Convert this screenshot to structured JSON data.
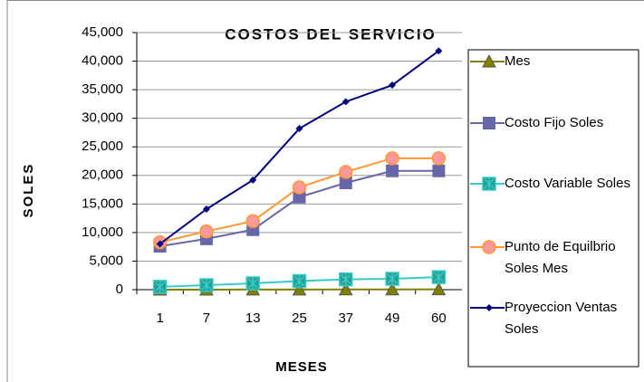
{
  "chart_data": {
    "type": "line",
    "title": "COSTOS DEL SERVICIO",
    "x_label": "MESES",
    "y_label": "SOLES",
    "categories": [
      "1",
      "7",
      "13",
      "25",
      "37",
      "49",
      "60"
    ],
    "series": [
      {
        "name": "Mes",
        "color": "#808000",
        "marker": "triangle",
        "values": [
          1,
          7,
          13,
          25,
          37,
          49,
          60
        ]
      },
      {
        "name": "Costo Fijo Soles",
        "color": "#6666a8",
        "marker": "square",
        "values": [
          7600,
          8900,
          10500,
          16200,
          18700,
          20800,
          20800
        ]
      },
      {
        "name": "Costo Variable Soles",
        "color": "#33cccc",
        "marker": "star",
        "values": [
          500,
          800,
          1100,
          1500,
          1800,
          1900,
          2200
        ]
      },
      {
        "name": "Punto de Equilbrio Soles Mes",
        "color": "#ff9933",
        "marker": "circle",
        "values": [
          8300,
          10200,
          12000,
          17900,
          20600,
          23000,
          23000
        ]
      },
      {
        "name": "Proyeccion Ventas Soles",
        "color": "#000080",
        "marker": "diamond",
        "values": [
          8000,
          14100,
          19200,
          28200,
          32900,
          35800,
          41800
        ]
      }
    ],
    "ylim": [
      0,
      45000
    ],
    "yticks": [
      0,
      {
        "value": 5000,
        "label": "5,000"
      },
      {
        "value": 10000,
        "label": "10,000"
      },
      {
        "value": 15000,
        "label": "15,000"
      },
      {
        "value": 20000,
        "label": "20,000"
      },
      {
        "value": 25000,
        "label": "25,000"
      },
      {
        "value": 30000,
        "label": "30,000"
      },
      {
        "value": 35000,
        "label": "35,000"
      },
      {
        "value": 40000,
        "label": "40,000"
      },
      {
        "value": 45000,
        "label": "45,000"
      }
    ],
    "grid": true,
    "legend": "right"
  }
}
